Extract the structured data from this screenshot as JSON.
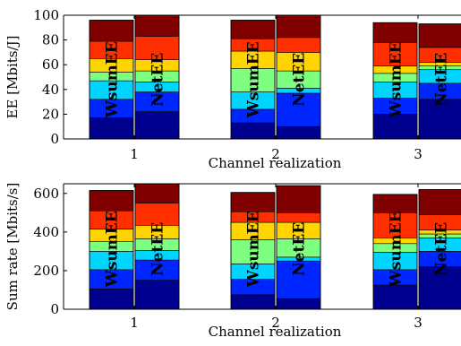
{
  "chart_data": [
    {
      "type": "bar",
      "stacked": true,
      "categories": [
        "1",
        "2",
        "3"
      ],
      "xlabel": "Channel realization",
      "ylabel": "EE [Mbits/J]",
      "ylim": [
        0,
        100
      ],
      "yticks": [
        0,
        20,
        40,
        60,
        80,
        100
      ],
      "bar_labels": [
        "WsumEE",
        "NetEE"
      ],
      "bars": [
        {
          "category": "1",
          "label": "WsumEE",
          "segments": [
            17,
            15,
            15,
            7,
            11,
            14,
            17
          ]
        },
        {
          "category": "1",
          "label": "NetEE",
          "segments": [
            22,
            16,
            8,
            9,
            9,
            19,
            23
          ]
        },
        {
          "category": "2",
          "label": "WsumEE",
          "segments": [
            13,
            11,
            14,
            19,
            14,
            10,
            15
          ]
        },
        {
          "category": "2",
          "label": "NetEE",
          "segments": [
            10,
            27,
            4,
            14,
            15,
            12,
            25
          ]
        },
        {
          "category": "3",
          "label": "WsumEE",
          "segments": [
            20,
            13,
            13,
            7,
            6,
            19,
            16
          ]
        },
        {
          "category": "3",
          "label": "NetEE",
          "segments": [
            32,
            13,
            11,
            3,
            3,
            12,
            19
          ]
        }
      ],
      "grid": false
    },
    {
      "type": "bar",
      "stacked": true,
      "categories": [
        "1",
        "2",
        "3"
      ],
      "xlabel": "Channel realization",
      "ylabel": "Sum rate [Mbits/s]",
      "ylim": [
        0,
        650
      ],
      "yticks": [
        0,
        200,
        400,
        600
      ],
      "bar_labels": [
        "WsumEE",
        "NetEE"
      ],
      "bars": [
        {
          "category": "1",
          "label": "WsumEE",
          "segments": [
            105,
            100,
            95,
            50,
            65,
            95,
            105
          ]
        },
        {
          "category": "1",
          "label": "NetEE",
          "segments": [
            150,
            105,
            50,
            60,
            70,
            115,
            145
          ]
        },
        {
          "category": "2",
          "label": "WsumEE",
          "segments": [
            75,
            80,
            80,
            125,
            90,
            55,
            100
          ]
        },
        {
          "category": "2",
          "label": "NetEE",
          "segments": [
            55,
            195,
            20,
            95,
            85,
            50,
            140
          ]
        },
        {
          "category": "3",
          "label": "WsumEE",
          "segments": [
            125,
            80,
            90,
            45,
            30,
            130,
            95
          ]
        },
        {
          "category": "3",
          "label": "NetEE",
          "segments": [
            220,
            80,
            70,
            20,
            20,
            80,
            130
          ]
        }
      ],
      "grid": false
    }
  ],
  "colors": {
    "segments": [
      "#00008f",
      "#0026ff",
      "#00d5ff",
      "#7fff7f",
      "#ffd400",
      "#ff2f00",
      "#800000"
    ],
    "axis": "#000000",
    "background": "#ffffff"
  }
}
